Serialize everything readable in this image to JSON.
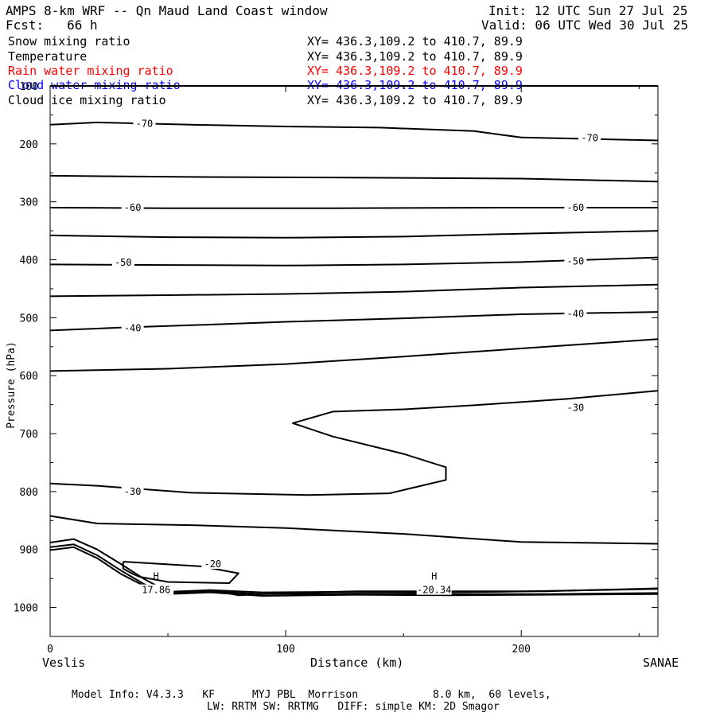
{
  "header": {
    "title": "AMPS 8-km WRF -- Qn Maud Land Coast window",
    "fcst": "Fcst:   66 h",
    "init": "Init: 12 UTC Sun 27 Jul 25",
    "valid": "Valid: 06 UTC Wed 30 Jul 25"
  },
  "legend": [
    {
      "label": "Snow mixing ratio",
      "xy": "XY= 436.3,109.2 to 410.7, 89.9",
      "color": "#000000"
    },
    {
      "label": "Temperature",
      "xy": "XY= 436.3,109.2 to 410.7, 89.9",
      "color": "#000000"
    },
    {
      "label": "Rain water mixing ratio",
      "xy": "XY= 436.3,109.2 to 410.7, 89.9",
      "color": "#ff0000"
    },
    {
      "label": "Cloud water mixing ratio",
      "xy": "XY= 436.3,109.2 to 410.7, 89.9",
      "color": "#0000ff"
    },
    {
      "label": "Cloud ice mixing ratio",
      "xy": "XY= 436.3,109.2 to 410.7, 89.9",
      "color": "#000000"
    }
  ],
  "footer": {
    "line1": "Model Info: V4.3.3   KF      MYJ PBL  Morrison            8.0 km,  60 levels,",
    "line2": "LW: RRTM SW: RRTMG   DIFF: simple KM: 2D Smagor"
  },
  "chart_data": {
    "type": "contour",
    "xlabel": "Distance (km)",
    "ylabel": "Pressure (hPa)",
    "xlim": [
      0,
      258
    ],
    "ylim": [
      1050,
      100
    ],
    "x_ticks": [
      0,
      100,
      200
    ],
    "y_ticks": [
      100,
      200,
      300,
      400,
      500,
      600,
      700,
      800,
      900,
      1000
    ],
    "left_endpoint": "Veslis",
    "right_endpoint": "SANAE",
    "contour_labels": [
      {
        "text": "-70",
        "x": 40,
        "p": 165
      },
      {
        "text": "-70",
        "x": 229,
        "p": 190
      },
      {
        "text": "-60",
        "x": 35,
        "p": 310
      },
      {
        "text": "-60",
        "x": 223,
        "p": 310
      },
      {
        "text": "-50",
        "x": 31,
        "p": 405
      },
      {
        "text": "-50",
        "x": 223,
        "p": 403
      },
      {
        "text": "-40",
        "x": 35,
        "p": 518
      },
      {
        "text": "-40",
        "x": 223,
        "p": 493
      },
      {
        "text": "-30",
        "x": 223,
        "p": 655
      },
      {
        "text": "-30",
        "x": 35,
        "p": 800
      },
      {
        "text": "-20",
        "x": 69,
        "p": 925
      }
    ],
    "extrema": [
      {
        "label": "H",
        "value": "17.86",
        "x": 45,
        "p": 952
      },
      {
        "label": "H",
        "value": "-20.34",
        "x": 163,
        "p": 952
      }
    ],
    "contours": [
      [
        [
          0,
          100
        ],
        [
          258,
          100
        ]
      ],
      [
        [
          0,
          167
        ],
        [
          20,
          163
        ],
        [
          60,
          167
        ],
        [
          100,
          170
        ],
        [
          140,
          172
        ],
        [
          180,
          178
        ],
        [
          200,
          189
        ],
        [
          258,
          194
        ]
      ],
      [
        [
          0,
          255
        ],
        [
          60,
          257
        ],
        [
          120,
          258
        ],
        [
          200,
          260
        ],
        [
          258,
          265
        ]
      ],
      [
        [
          0,
          310
        ],
        [
          50,
          311
        ],
        [
          120,
          311
        ],
        [
          200,
          310
        ],
        [
          258,
          310
        ]
      ],
      [
        [
          0,
          358
        ],
        [
          50,
          361
        ],
        [
          100,
          362
        ],
        [
          150,
          360
        ],
        [
          200,
          355
        ],
        [
          258,
          350
        ]
      ],
      [
        [
          0,
          408
        ],
        [
          50,
          409
        ],
        [
          100,
          410
        ],
        [
          150,
          408
        ],
        [
          200,
          404
        ],
        [
          258,
          396
        ]
      ],
      [
        [
          0,
          463
        ],
        [
          50,
          461
        ],
        [
          100,
          459
        ],
        [
          150,
          455
        ],
        [
          200,
          448
        ],
        [
          258,
          443
        ]
      ],
      [
        [
          0,
          522
        ],
        [
          30,
          517
        ],
        [
          60,
          513
        ],
        [
          100,
          507
        ],
        [
          150,
          501
        ],
        [
          200,
          494
        ],
        [
          258,
          490
        ]
      ],
      [
        [
          0,
          592
        ],
        [
          50,
          588
        ],
        [
          100,
          580
        ],
        [
          150,
          567
        ],
        [
          200,
          553
        ],
        [
          258,
          537
        ]
      ],
      [
        [
          258,
          626
        ],
        [
          220,
          640
        ],
        [
          180,
          651
        ],
        [
          150,
          658
        ],
        [
          120,
          662
        ],
        [
          103,
          682
        ],
        [
          120,
          705
        ],
        [
          150,
          735
        ],
        [
          168,
          758
        ],
        [
          168,
          780
        ],
        [
          144,
          803
        ],
        [
          110,
          806
        ],
        [
          60,
          802
        ],
        [
          20,
          790
        ],
        [
          0,
          786
        ]
      ],
      [
        [
          0,
          842
        ],
        [
          20,
          855
        ],
        [
          60,
          858
        ],
        [
          100,
          863
        ],
        [
          150,
          873
        ],
        [
          200,
          887
        ],
        [
          258,
          890
        ]
      ],
      [
        [
          31,
          921
        ],
        [
          64,
          929
        ],
        [
          80,
          941
        ],
        [
          76,
          958
        ],
        [
          50,
          956
        ],
        [
          38,
          947
        ],
        [
          35,
          942
        ],
        [
          31,
          933
        ],
        [
          31,
          921
        ]
      ],
      [
        [
          0,
          888
        ],
        [
          10,
          882
        ],
        [
          20,
          900
        ],
        [
          30,
          925
        ],
        [
          40,
          951
        ],
        [
          50,
          973
        ],
        [
          68,
          970
        ],
        [
          80,
          979
        ],
        [
          100,
          975
        ],
        [
          130,
          972
        ],
        [
          170,
          972
        ],
        [
          210,
          972
        ],
        [
          258,
          967
        ]
      ],
      [
        [
          0,
          896
        ],
        [
          10,
          891
        ],
        [
          20,
          910
        ],
        [
          30,
          936
        ],
        [
          40,
          960
        ],
        [
          50,
          975
        ],
        [
          68,
          972
        ],
        [
          90,
          977
        ],
        [
          130,
          976
        ],
        [
          170,
          977
        ],
        [
          210,
          977
        ],
        [
          258,
          975
        ]
      ],
      [
        [
          0,
          901
        ],
        [
          10,
          896
        ],
        [
          20,
          915
        ],
        [
          30,
          942
        ],
        [
          40,
          963
        ],
        [
          50,
          977
        ],
        [
          68,
          974
        ],
        [
          90,
          980
        ],
        [
          130,
          978
        ],
        [
          170,
          979
        ],
        [
          210,
          978
        ],
        [
          258,
          977
        ]
      ],
      [
        [
          50,
          976
        ],
        [
          68,
          970
        ],
        [
          90,
          974
        ],
        [
          130,
          973
        ],
        [
          160,
          974
        ],
        [
          190,
          973
        ],
        [
          258,
          968
        ]
      ]
    ]
  }
}
